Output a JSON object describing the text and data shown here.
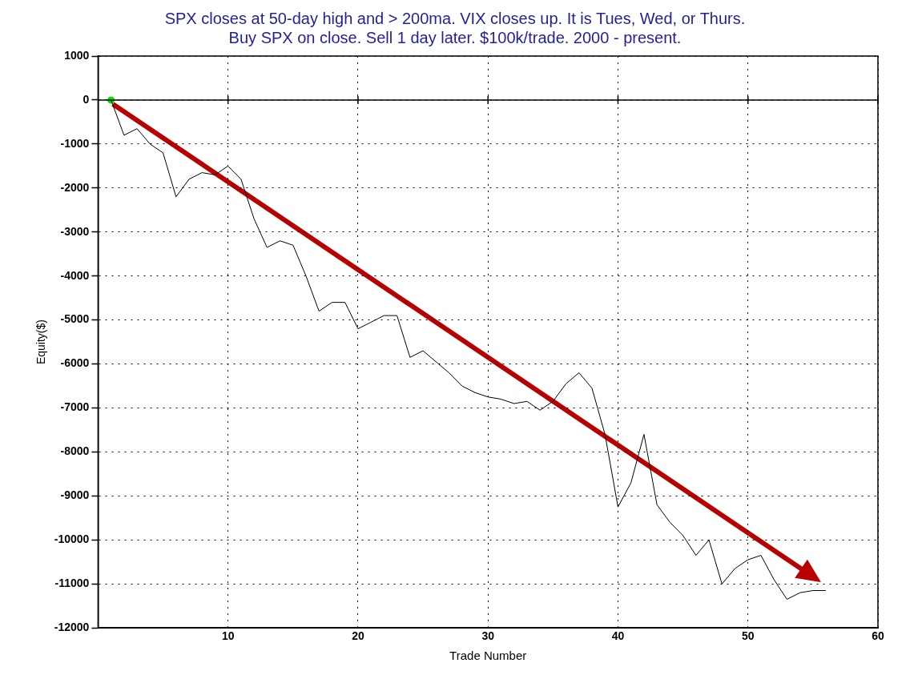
{
  "chart_data": {
    "type": "line",
    "title": "SPX closes at 50-day high and > 200ma. VIX closes up. It is Tues, Wed, or Thurs.\nBuy SPX on close. Sell 1 day later. $100k/trade. 2000 - present.",
    "xlabel": "Trade Number",
    "ylabel": "Equity($)",
    "x": [
      1,
      2,
      3,
      4,
      5,
      6,
      7,
      8,
      9,
      10,
      11,
      12,
      13,
      14,
      15,
      16,
      17,
      18,
      19,
      20,
      21,
      22,
      23,
      24,
      25,
      26,
      27,
      28,
      29,
      30,
      31,
      32,
      33,
      34,
      35,
      36,
      37,
      38,
      39,
      40,
      41,
      42,
      43,
      44,
      45,
      46,
      47,
      48,
      49,
      50,
      51,
      52,
      53,
      54,
      55,
      56
    ],
    "series": [
      {
        "color": "#000000",
        "marker": "none",
        "values": [
          0,
          -800,
          -650,
          -1000,
          -1200,
          -2200,
          -1800,
          -1650,
          -1700,
          -1500,
          -1800,
          -2700,
          -3350,
          -3200,
          -3300,
          -4000,
          -4800,
          -4600,
          -4600,
          -5200,
          -5050,
          -4900,
          -4900,
          -5850,
          -5700,
          -5950,
          -6200,
          -6500,
          -6650,
          -6750,
          -6800,
          -6900,
          -6850,
          -7050,
          -6850,
          -6450,
          -6200,
          -6550,
          -7600,
          -9250,
          -8700,
          -7600,
          -9200,
          -9600,
          -9900,
          -10350,
          -10000,
          -11000,
          -10650,
          -10450,
          -10350,
          -10900,
          -11350,
          -11200,
          -11150,
          -11150
        ]
      },
      {
        "type": "scatter",
        "color": "#00e000",
        "marker": "circle",
        "x": [
          1
        ],
        "values": [
          0
        ]
      }
    ],
    "xlim": [
      0,
      60
    ],
    "xticks": [
      10,
      20,
      30,
      40,
      50,
      60
    ],
    "ylim": [
      -12000,
      1000
    ],
    "yticks": [
      -12000,
      -11000,
      -10000,
      -9000,
      -8000,
      -7000,
      -6000,
      -5000,
      -4000,
      -3000,
      -2000,
      -1000,
      0,
      1000
    ],
    "ref_lines": [
      {
        "axis": "y",
        "value": 0,
        "color": "#000000",
        "line_style": "solid"
      }
    ],
    "grid": true,
    "legend": false
  }
}
